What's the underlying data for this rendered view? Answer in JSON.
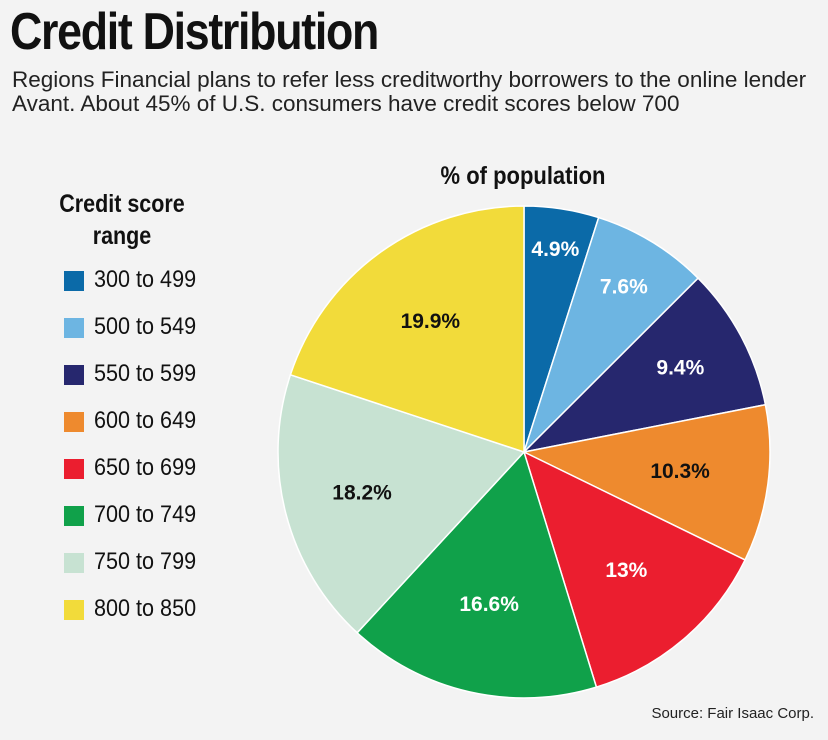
{
  "title": "Credit Distribution",
  "subtitle": "Regions Financial plans to refer less creditworthy borrowers to the online lender Avant. About 45% of U.S. consumers have credit scores below 700",
  "legend_title": "Credit score range",
  "chart_header": "% of population",
  "source": "Source: Fair Isaac Corp.",
  "chart_data": {
    "type": "pie",
    "title": "% of population",
    "categories": [
      "300 to 499",
      "500 to 549",
      "550 to 599",
      "600 to 649",
      "650 to 699",
      "700 to 749",
      "750 to 799",
      "800 to 850"
    ],
    "values": [
      4.9,
      7.6,
      9.4,
      10.3,
      13,
      16.6,
      18.2,
      19.9
    ],
    "labels": [
      "4.9%",
      "7.6%",
      "9.4%",
      "10.3%",
      "13%",
      "16.6%",
      "18.2%",
      "19.9%"
    ],
    "colors": [
      "#0b6aa8",
      "#6db5e2",
      "#26276e",
      "#ee8a2e",
      "#eb1e2f",
      "#10a14a",
      "#c7e2d2",
      "#f2db3a"
    ],
    "label_colors": [
      "#ffffff",
      "#ffffff",
      "#ffffff",
      "#111111",
      "#ffffff",
      "#ffffff",
      "#111111",
      "#111111"
    ],
    "legend_placement": "left",
    "start": "12 o'clock",
    "direction": "clockwise"
  }
}
